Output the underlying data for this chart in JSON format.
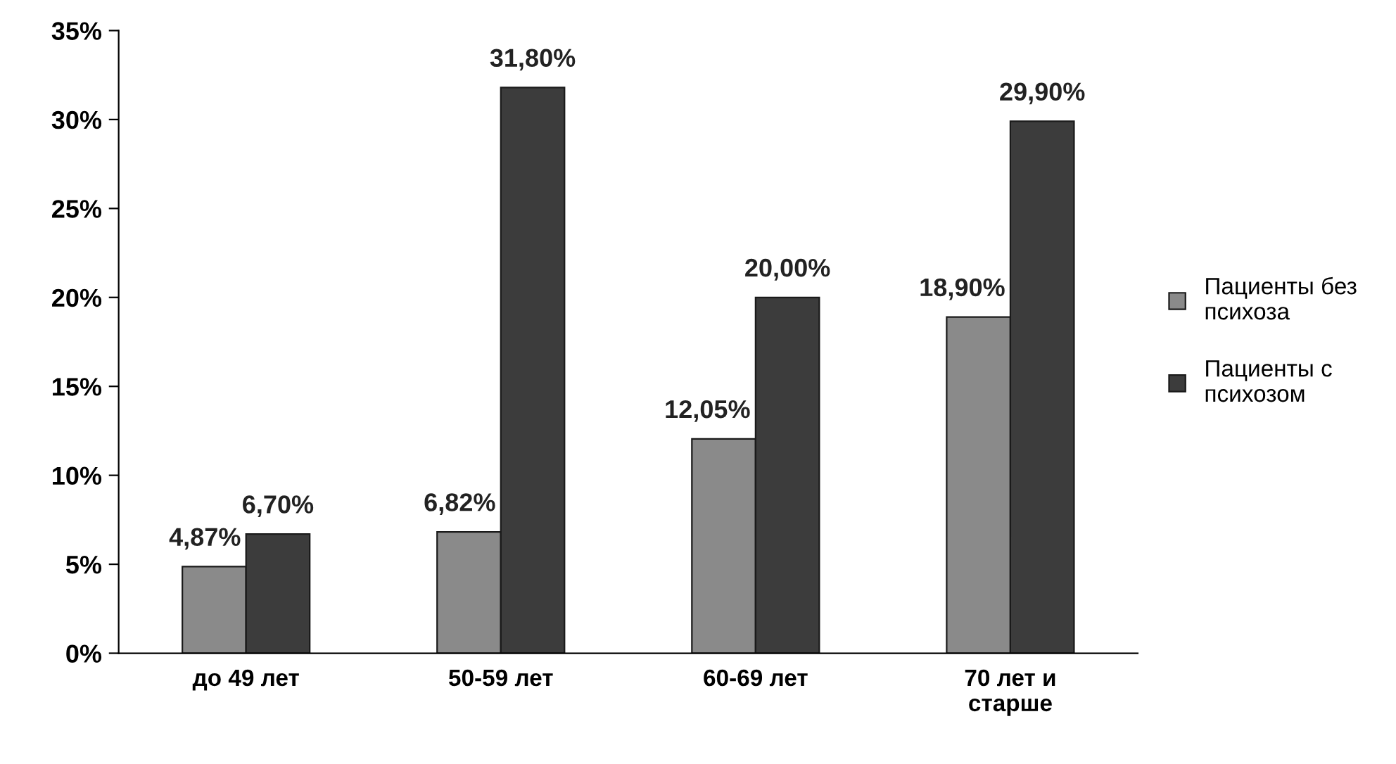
{
  "chart_data": {
    "type": "bar",
    "categories": [
      "до 49 лет",
      "50-59 лет",
      "60-69 лет",
      "70 лет и\nстарше"
    ],
    "series": [
      {
        "name": "Пациенты без\nпсихоза",
        "color": "#8a8a8a",
        "values": [
          4.87,
          6.82,
          12.05,
          18.9
        ],
        "value_labels": [
          "4,87%",
          "6,82%",
          "12,05%",
          "18,90%"
        ]
      },
      {
        "name": "Пациенты с\nпсихозом",
        "color": "#3c3c3c",
        "values": [
          6.7,
          31.8,
          20.0,
          29.9
        ],
        "value_labels": [
          "6,70%",
          "31,80%",
          "20,00%",
          "29,90%"
        ]
      }
    ],
    "ylim": [
      0,
      35
    ],
    "yticks": [
      {
        "value": 0,
        "label": "0%"
      },
      {
        "value": 5,
        "label": "5%"
      },
      {
        "value": 10,
        "label": "10%"
      },
      {
        "value": 15,
        "label": "15%"
      },
      {
        "value": 20,
        "label": "20%"
      },
      {
        "value": 25,
        "label": "25%"
      },
      {
        "value": 30,
        "label": "30%"
      },
      {
        "value": 35,
        "label": "35%"
      }
    ],
    "grid": false,
    "legend": "right"
  }
}
